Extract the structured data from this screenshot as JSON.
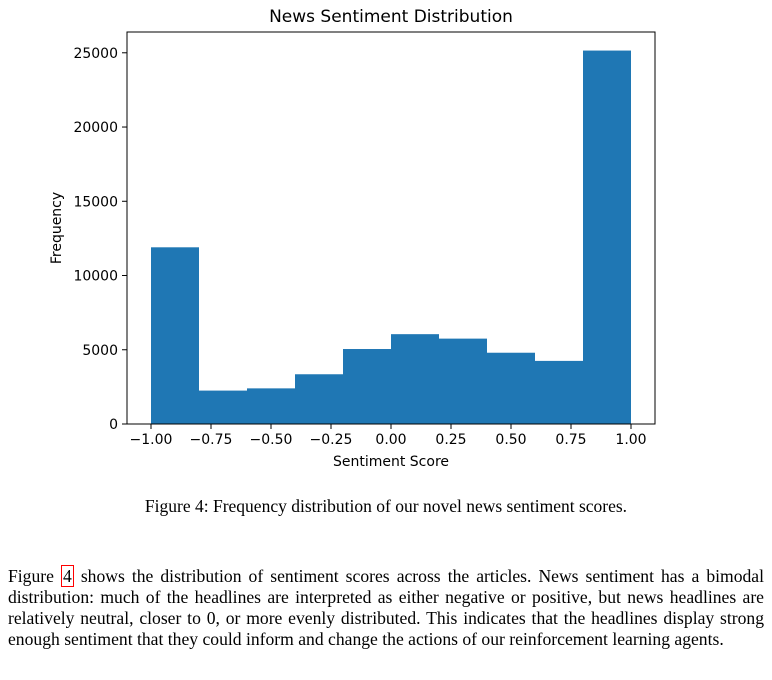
{
  "chart_data": {
    "type": "bar",
    "title": "News Sentiment Distribution",
    "xlabel": "Sentiment Score",
    "ylabel": "Frequency",
    "bin_edges": [
      -1.0,
      -0.8,
      -0.6,
      -0.4,
      -0.2,
      0.0,
      0.2,
      0.4,
      0.6,
      0.8,
      1.0
    ],
    "values": [
      11900,
      2250,
      2400,
      3350,
      5050,
      6050,
      5750,
      4800,
      4250,
      25150
    ],
    "xlim": [
      -1.1,
      1.1
    ],
    "ylim": [
      0,
      26400
    ],
    "xticks": [
      -1.0,
      -0.75,
      -0.5,
      -0.25,
      0.0,
      0.25,
      0.5,
      0.75,
      1.0
    ],
    "xtick_labels": [
      "−1.00",
      "−0.75",
      "−0.50",
      "−0.25",
      "0.00",
      "0.25",
      "0.50",
      "0.75",
      "1.00"
    ],
    "yticks": [
      0,
      5000,
      10000,
      15000,
      20000,
      25000
    ],
    "ytick_labels": [
      "0",
      "5000",
      "10000",
      "15000",
      "20000",
      "25000"
    ],
    "bar_color": "#1f77b4",
    "grid": false
  },
  "caption": "Figure 4: Frequency distribution of our novel news sentiment scores.",
  "body": {
    "before_ref": "Figure ",
    "ref": "4",
    "after_ref": " shows the distribution of sentiment scores across the articles. News sentiment has a bimodal distribution: much of the headlines are interpreted as either negative or positive, but news headlines are relatively neutral, closer to 0, or more evenly distributed. This indicates that the headlines display strong enough sentiment that they could inform and change the actions of our reinforcement learning agents."
  }
}
